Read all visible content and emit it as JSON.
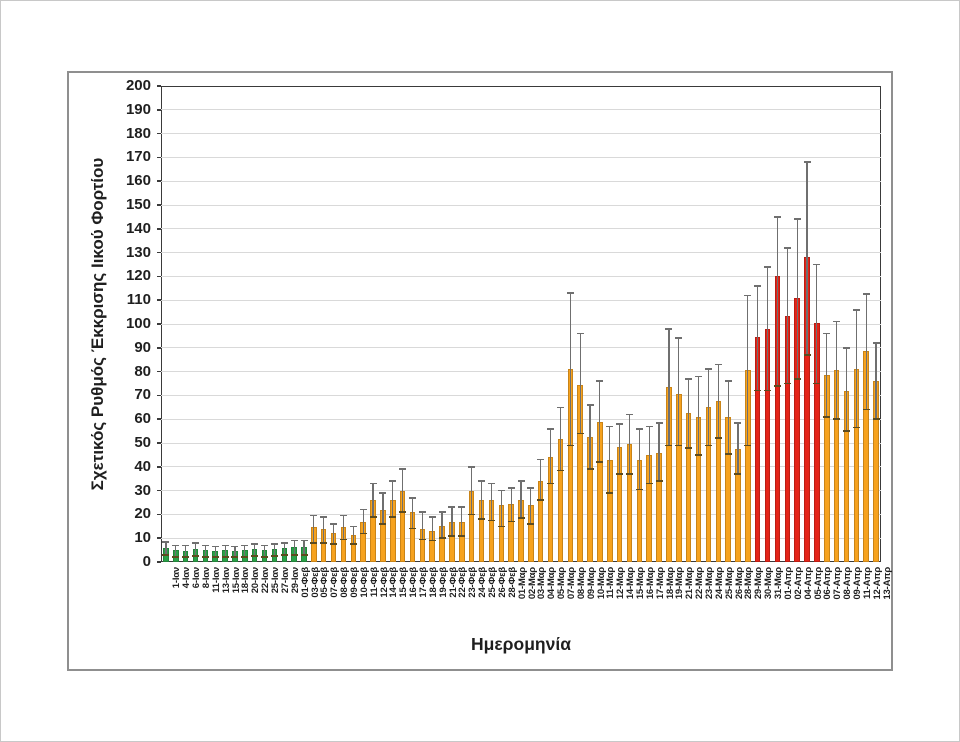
{
  "page": {
    "background": "#ffffff"
  },
  "chart_data": {
    "type": "bar",
    "title": "",
    "xlabel": "Ημερομηνία",
    "ylabel": "Σχετικός Ρυθμός Έκκρισης Ιικού Φορτίου",
    "ylim": [
      0,
      200
    ],
    "ytick_step": 10,
    "grid": true,
    "legend": "none",
    "colors": {
      "green": "#2aa148",
      "orange": "#f6a21e",
      "red": "#e42418",
      "error_bar": "#6f6f6f",
      "gridline": "#d9d9d9",
      "plot_border": "#3a3a3a",
      "frame_border": "#8f8f8f",
      "text": "#1f1f1f"
    },
    "categories": [
      "1-Ιαν",
      "4-Ιαν",
      "6-Ιαν",
      "8-Ιαν",
      "11-Ιαν",
      "13-Ιαν",
      "15-Ιαν",
      "18-Ιαν",
      "20-Ιαν",
      "22-Ιαν",
      "25-Ιαν",
      "27-Ιαν",
      "29-Ιαν",
      "01-Φεβ",
      "03-Φεβ",
      "05-Φεβ",
      "07-Φεβ",
      "08-Φεβ",
      "09-Φεβ",
      "10-Φεβ",
      "11-Φεβ",
      "12-Φεβ",
      "14-Φεβ",
      "15-Φεβ",
      "16-Φεβ",
      "17-Φεβ",
      "18-Φεβ",
      "19-Φεβ",
      "21-Φεβ",
      "22-Φεβ",
      "23-Φεβ",
      "24-Φεβ",
      "25-Φεβ",
      "26-Φεβ",
      "28-Φεβ",
      "01-Μαρ",
      "02-Μαρ",
      "03-Μαρ",
      "04-Μαρ",
      "05-Μαρ",
      "07-Μαρ",
      "08-Μαρ",
      "09-Μαρ",
      "10-Μαρ",
      "11-Μαρ",
      "12-Μαρ",
      "14-Μαρ",
      "15-Μαρ",
      "16-Μαρ",
      "17-Μαρ",
      "18-Μαρ",
      "19-Μαρ",
      "21-Μαρ",
      "22-Μαρ",
      "23-Μαρ",
      "24-Μαρ",
      "25-Μαρ",
      "26-Μαρ",
      "28-Μαρ",
      "29-Μαρ",
      "30-Μαρ",
      "31-Μαρ",
      "01-Απρ",
      "02-Απρ",
      "04-Απρ",
      "05-Απρ",
      "06-Απρ",
      "07-Απρ",
      "08-Απρ",
      "09-Απρ",
      "11-Απρ",
      "12-Απρ",
      "13-Απρ"
    ],
    "values": [
      6,
      5,
      4.5,
      5.5,
      5,
      4.5,
      5,
      4.5,
      5,
      5.5,
      5,
      5.5,
      6,
      6.5,
      6.5,
      14.5,
      14,
      12,
      14.5,
      11.5,
      17,
      26,
      22,
      26,
      30,
      21,
      14,
      13,
      15,
      17,
      17,
      30,
      26,
      26,
      24,
      24.5,
      26,
      24,
      34,
      44,
      51.5,
      81,
      74.5,
      52.5,
      59,
      43,
      48.5,
      49.5,
      43,
      45,
      46,
      73.5,
      70.5,
      62.5,
      61,
      65,
      67.5,
      61,
      47.5,
      80.5,
      94.5,
      98,
      120,
      103.5,
      111,
      128,
      100.5,
      78.5,
      80.5,
      72,
      81,
      88.5,
      76
    ],
    "error_low": [
      3,
      2,
      2,
      2.5,
      2,
      2,
      2,
      2,
      2,
      2.5,
      2,
      2.5,
      3,
      3,
      3,
      8,
      8,
      7.5,
      9.5,
      7.5,
      12,
      19,
      16,
      19,
      21,
      14,
      9.5,
      9,
      10,
      11,
      11,
      20,
      18,
      17.5,
      15,
      17,
      18.5,
      16,
      26,
      33,
      38.5,
      49,
      54,
      39,
      42,
      29,
      37,
      37,
      30.5,
      33,
      34,
      49,
      49,
      48,
      45,
      49,
      52,
      45.5,
      37,
      49,
      72,
      72,
      74,
      75,
      77,
      87,
      75,
      61,
      60,
      55,
      56.5,
      64,
      60
    ],
    "error_high": [
      8.5,
      7,
      7,
      8,
      7,
      6.5,
      7,
      6.5,
      7,
      7.5,
      7,
      7.5,
      8,
      9,
      9,
      19.5,
      19,
      16,
      19.5,
      15,
      22,
      33,
      29,
      34,
      39,
      27,
      21,
      19,
      21,
      23,
      23,
      40,
      34,
      33,
      30,
      31,
      34,
      31,
      43,
      56,
      65,
      113,
      96,
      66,
      76,
      57,
      58,
      62,
      56,
      57,
      58.5,
      98,
      94,
      77,
      78,
      81,
      83,
      76,
      58.5,
      112,
      116,
      124,
      145,
      132,
      144,
      168,
      125,
      96,
      101,
      90,
      106,
      112.5,
      92
    ],
    "levels": [
      "green",
      "green",
      "green",
      "green",
      "green",
      "green",
      "green",
      "green",
      "green",
      "green",
      "green",
      "green",
      "green",
      "green",
      "green",
      "orange",
      "orange",
      "orange",
      "orange",
      "orange",
      "orange",
      "orange",
      "orange",
      "orange",
      "orange",
      "orange",
      "orange",
      "orange",
      "orange",
      "orange",
      "orange",
      "orange",
      "orange",
      "orange",
      "orange",
      "orange",
      "orange",
      "orange",
      "orange",
      "orange",
      "orange",
      "orange",
      "orange",
      "orange",
      "orange",
      "orange",
      "orange",
      "orange",
      "orange",
      "orange",
      "orange",
      "orange",
      "orange",
      "orange",
      "orange",
      "orange",
      "orange",
      "orange",
      "orange",
      "orange",
      "red",
      "red",
      "red",
      "red",
      "red",
      "red",
      "red",
      "orange",
      "orange",
      "orange",
      "orange",
      "orange",
      "orange"
    ]
  }
}
